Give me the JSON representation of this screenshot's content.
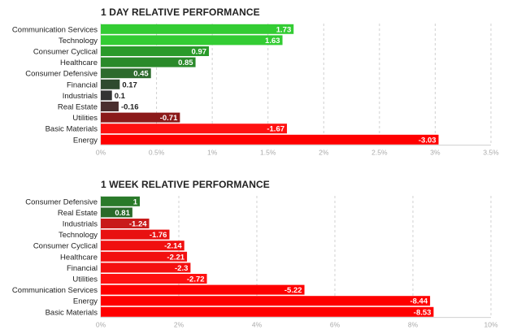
{
  "chart_data": [
    {
      "type": "bar",
      "orientation": "horizontal",
      "title": "1 DAY RELATIVE PERFORMANCE",
      "categories": [
        "Communication Services",
        "Technology",
        "Consumer Cyclical",
        "Healthcare",
        "Consumer Defensive",
        "Financial",
        "Industrials",
        "Real Estate",
        "Utilities",
        "Basic Materials",
        "Energy"
      ],
      "values": [
        1.73,
        1.63,
        0.97,
        0.85,
        0.45,
        0.17,
        0.1,
        -0.16,
        -0.71,
        -1.67,
        -3.03
      ],
      "value_labels": [
        "1.73",
        "1.63",
        "0.97",
        "0.85",
        "0.45",
        "0.17",
        "0.1",
        "-0.16",
        "-0.71",
        "-1.67",
        "-3.03"
      ],
      "xlim": [
        0,
        3.5
      ],
      "ticks": [
        "0%",
        "0.5%",
        "1%",
        "1.5%",
        "2%",
        "2.5%",
        "3%",
        "3.5%"
      ],
      "tick_values": [
        0,
        0.5,
        1,
        1.5,
        2,
        2.5,
        3,
        3.5
      ],
      "grid": true,
      "colors": [
        "#33cc33",
        "#33cc33",
        "#2a9a2a",
        "#2a8a2a",
        "#2d6b2d",
        "#2e4a2e",
        "#333333",
        "#4a2e2e",
        "#8b1a1a",
        "#ff1111",
        "#ff0000"
      ]
    },
    {
      "type": "bar",
      "orientation": "horizontal",
      "title": "1 WEEK RELATIVE PERFORMANCE",
      "categories": [
        "Consumer Defensive",
        "Real Estate",
        "Industrials",
        "Technology",
        "Consumer Cyclical",
        "Healthcare",
        "Financial",
        "Utilities",
        "Communication Services",
        "Energy",
        "Basic Materials"
      ],
      "values": [
        1,
        0.81,
        -1.24,
        -1.76,
        -2.14,
        -2.21,
        -2.3,
        -2.72,
        -5.22,
        -8.44,
        -8.53
      ],
      "value_labels": [
        "1",
        "0.81",
        "-1.24",
        "-1.76",
        "-2.14",
        "-2.21",
        "-2.3",
        "-2.72",
        "-5.22",
        "-8.44",
        "-8.53"
      ],
      "xlim": [
        0,
        10
      ],
      "ticks": [
        "0%",
        "2%",
        "4%",
        "6%",
        "8%",
        "10%"
      ],
      "tick_values": [
        0,
        2,
        4,
        6,
        8,
        10
      ],
      "grid": true,
      "colors": [
        "#2a7a2a",
        "#2a6a2a",
        "#c81a1a",
        "#e81111",
        "#f01010",
        "#f21010",
        "#f41010",
        "#ff1111",
        "#ff0000",
        "#ff0000",
        "#ff0000"
      ]
    }
  ]
}
